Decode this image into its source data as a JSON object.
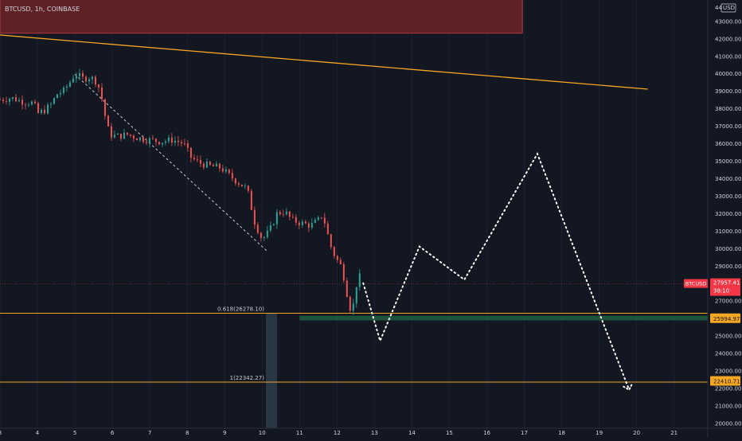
{
  "header": {
    "symbol_info": "BTCUSD, 1h, COINBASE"
  },
  "colors": {
    "background": "#131722",
    "axis_text": "#d1d4dc",
    "grid": "#1c2030",
    "candle_up": "#26a69a",
    "candle_down": "#ef5350",
    "trendline": "#f5a623",
    "fib_line": "#f5a623",
    "resistance_zone": "#6b2327",
    "support_zone": "#1f5a3f",
    "price_tag": "#f23645",
    "level_tag": "#f5a623",
    "projection": "#ffffff"
  },
  "price_axis": {
    "top_label_value": "44",
    "top_label_unit": "USD",
    "ticks": [
      "43000.00",
      "42000.00",
      "41000.00",
      "40000.00",
      "39000.00",
      "38000.00",
      "37000.00",
      "36000.00",
      "35000.00",
      "34000.00",
      "33000.00",
      "32000.00",
      "31000.00",
      "30000.00",
      "29000.00",
      "27000.00",
      "25000.00",
      "24000.00",
      "23000.00",
      "22000.00",
      "21000.00",
      "20000.00"
    ]
  },
  "current_price": {
    "symbol": "BTCUSD",
    "price": "27957.41",
    "countdown": "38:10",
    "value": 27957.41
  },
  "level_tags": [
    {
      "label": "25994.97",
      "value": 25994.97
    },
    {
      "label": "22410.71",
      "value": 22410.71
    }
  ],
  "fib_levels": [
    {
      "label": "0.618(26278.10)",
      "value": 26278.1
    },
    {
      "label": "1(22342.27)",
      "value": 22342.27
    }
  ],
  "chart_data": {
    "type": "candlestick",
    "x_label_dates": [
      "3",
      "4",
      "5",
      "6",
      "7",
      "8",
      "9",
      "10",
      "11",
      "12",
      "13",
      "14",
      "15",
      "16",
      "17",
      "18",
      "19",
      "20",
      "21"
    ],
    "ylim": [
      19700,
      44200
    ],
    "xlim": [
      3,
      21.9
    ],
    "price_path": [
      [
        3.0,
        38500
      ],
      [
        3.3,
        38600
      ],
      [
        3.6,
        38400
      ],
      [
        3.9,
        38300
      ],
      [
        4.0,
        37700
      ],
      [
        4.2,
        37900
      ],
      [
        4.4,
        38300
      ],
      [
        4.5,
        38800
      ],
      [
        4.7,
        39000
      ],
      [
        4.9,
        39600
      ],
      [
        5.0,
        40000
      ],
      [
        5.2,
        39700
      ],
      [
        5.4,
        39800
      ],
      [
        5.6,
        39500
      ],
      [
        5.75,
        38300
      ],
      [
        5.85,
        37000
      ],
      [
        5.95,
        36500
      ],
      [
        6.1,
        36400
      ],
      [
        6.4,
        36500
      ],
      [
        6.7,
        36300
      ],
      [
        7.0,
        36200
      ],
      [
        7.3,
        36100
      ],
      [
        7.6,
        36200
      ],
      [
        7.9,
        36000
      ],
      [
        8.1,
        35200
      ],
      [
        8.3,
        34900
      ],
      [
        8.6,
        34700
      ],
      [
        8.9,
        34600
      ],
      [
        9.1,
        34200
      ],
      [
        9.4,
        33700
      ],
      [
        9.6,
        33400
      ],
      [
        9.8,
        31500
      ],
      [
        10.0,
        30500
      ],
      [
        10.2,
        31000
      ],
      [
        10.4,
        32000
      ],
      [
        10.6,
        32100
      ],
      [
        10.8,
        31600
      ],
      [
        11.1,
        31400
      ],
      [
        11.3,
        31300
      ],
      [
        11.5,
        31600
      ],
      [
        11.6,
        31900
      ],
      [
        11.7,
        31300
      ],
      [
        11.8,
        30300
      ],
      [
        11.95,
        29500
      ],
      [
        12.1,
        29000
      ],
      [
        12.2,
        28200
      ],
      [
        12.3,
        27000
      ],
      [
        12.4,
        26200
      ],
      [
        12.5,
        27800
      ],
      [
        12.6,
        28400
      ],
      [
        12.65,
        27957
      ]
    ],
    "trendline": {
      "start": [
        3.0,
        42200
      ],
      "end": [
        20.3,
        39100
      ]
    },
    "diagonal_guide": {
      "start": [
        5.0,
        39950
      ],
      "end": [
        10.15,
        29800
      ]
    },
    "projection_path": [
      [
        12.7,
        28000
      ],
      [
        13.15,
        24700
      ],
      [
        14.2,
        30100
      ],
      [
        15.4,
        28200
      ],
      [
        17.35,
        35400
      ],
      [
        19.8,
        21900
      ]
    ],
    "fib_range_bar": {
      "x_start": 10.1,
      "x_end": 10.4,
      "y_low": 19700,
      "y_high": 26278.1
    },
    "resistance_zone": {
      "x_start": 3.0,
      "x_end": 16.95,
      "y_low": 42300,
      "y_high": 44500
    },
    "support_zone": {
      "x_start": 11.0,
      "x_end": 21.9,
      "y_low": 25870,
      "y_high": 26140
    }
  }
}
